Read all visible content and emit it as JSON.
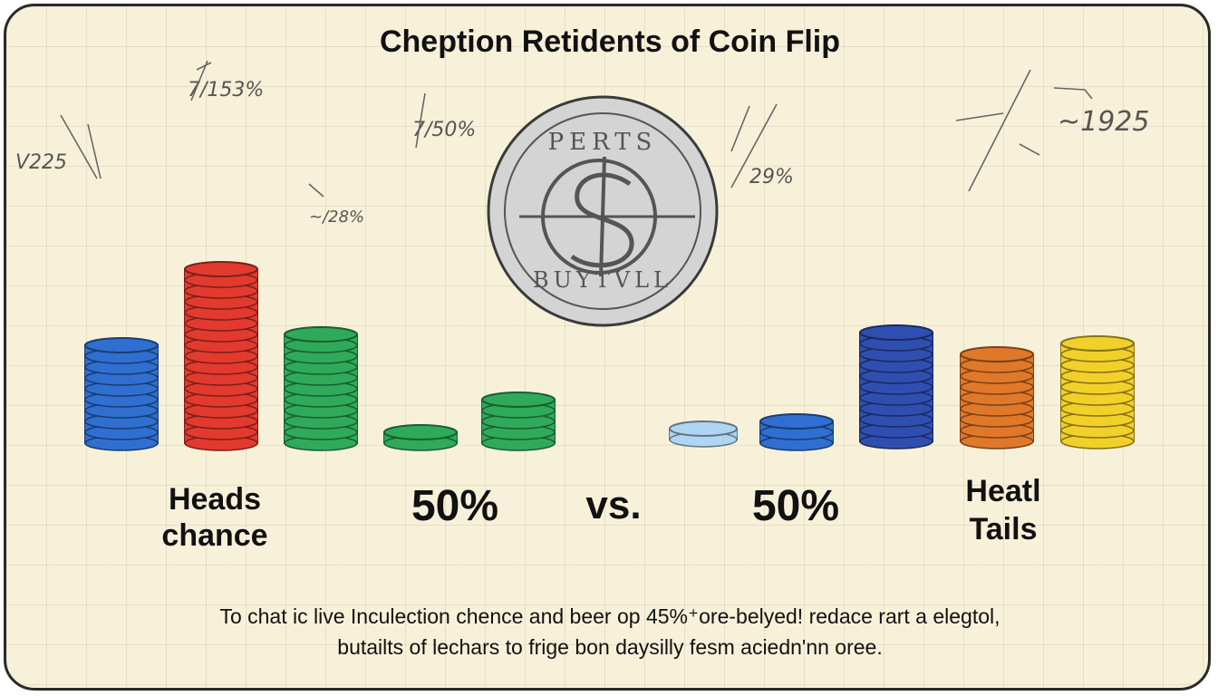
{
  "title": "Cheption Retidents of Coin Flip",
  "notes": {
    "n1": "7/153%",
    "n2": "V225",
    "n3": "7/50%",
    "n4": "~/28%",
    "n5": "29%",
    "n6": "~1925"
  },
  "coin": {
    "top_text": "PERTS",
    "bottom_text": "BUYTVLL"
  },
  "labels": {
    "heads_line1": "Heads",
    "heads_line2": "chance",
    "pct_left": "50%",
    "vs": "vs.",
    "pct_right": "50%",
    "tails_line1": "Heatl",
    "tails_line2": "Tails"
  },
  "caption": {
    "line1": "To chat ic live Inculection chence and beer op 45%⁺ore-belyed! redace rart a elegtol,",
    "line2": "butailts of lechars to frige bon daysilly fesm aciedn'nn oree."
  },
  "colors": {
    "blue": "#2f6fd0",
    "red": "#e23a2e",
    "green": "#2faa5a",
    "navy": "#2f4fb0",
    "orange": "#e0782a",
    "yellow": "#f2d02a",
    "light_blue": "#aed6f2",
    "coin": "#d4d4d4"
  },
  "stacks": [
    {
      "name": "blue-stack",
      "color": "blue",
      "chips": 9
    },
    {
      "name": "red-stack",
      "color": "red",
      "chips": 16
    },
    {
      "name": "green-stack",
      "color": "green",
      "chips": 10
    },
    {
      "name": "small-green-stack",
      "color": "green",
      "chips": 1
    },
    {
      "name": "green-short-stack",
      "color": "green",
      "chips": 4
    },
    {
      "name": "light-blue-chip",
      "color": "light_blue",
      "chips": 1
    },
    {
      "name": "small-blue-stack",
      "color": "blue",
      "chips": 2
    },
    {
      "name": "navy-stack",
      "color": "navy",
      "chips": 10
    },
    {
      "name": "orange-stack",
      "color": "orange",
      "chips": 8
    },
    {
      "name": "yellow-stack",
      "color": "yellow",
      "chips": 9
    }
  ]
}
